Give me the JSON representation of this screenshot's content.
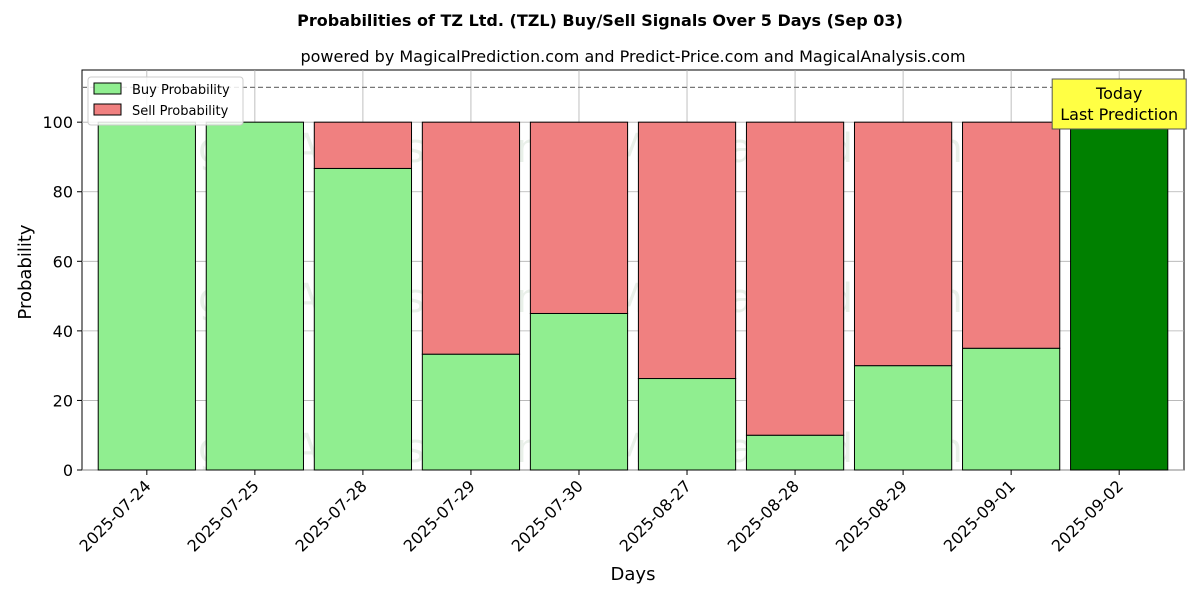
{
  "chart_data": {
    "type": "bar",
    "stacked": true,
    "title": "Probabilities of TZ Ltd. (TZL) Buy/Sell Signals Over 5 Days (Sep 03)",
    "subtitle": "powered by MagicalPrediction.com and Predict-Price.com and MagicalAnalysis.com",
    "xlabel": "Days",
    "ylabel": "Probability",
    "ylim": [
      0,
      115
    ],
    "yticks": [
      0,
      20,
      40,
      60,
      80,
      100
    ],
    "grid": true,
    "legend_position": "top-left",
    "reference_line": 110,
    "categories": [
      "2025-07-24",
      "2025-07-25",
      "2025-07-28",
      "2025-07-29",
      "2025-07-30",
      "2025-08-27",
      "2025-08-28",
      "2025-08-29",
      "2025-09-01",
      "2025-09-02"
    ],
    "series": [
      {
        "name": "Buy Probability",
        "color": "#90ee90",
        "values": [
          100,
          100,
          86.7,
          33.3,
          45,
          26.3,
          10,
          30,
          35,
          100
        ]
      },
      {
        "name": "Sell Probability",
        "color": "#f08080",
        "values": [
          0,
          0,
          13.3,
          66.7,
          55,
          73.7,
          90,
          70,
          65,
          0
        ]
      }
    ],
    "highlight": {
      "index": 9,
      "color": "#008000",
      "label_line1": "Today",
      "label_line2": "Last Prediction",
      "label_bg": "#ffff44"
    },
    "watermarks": [
      "MagicalAnalysis.com",
      "MagicalPrediction.com"
    ]
  }
}
